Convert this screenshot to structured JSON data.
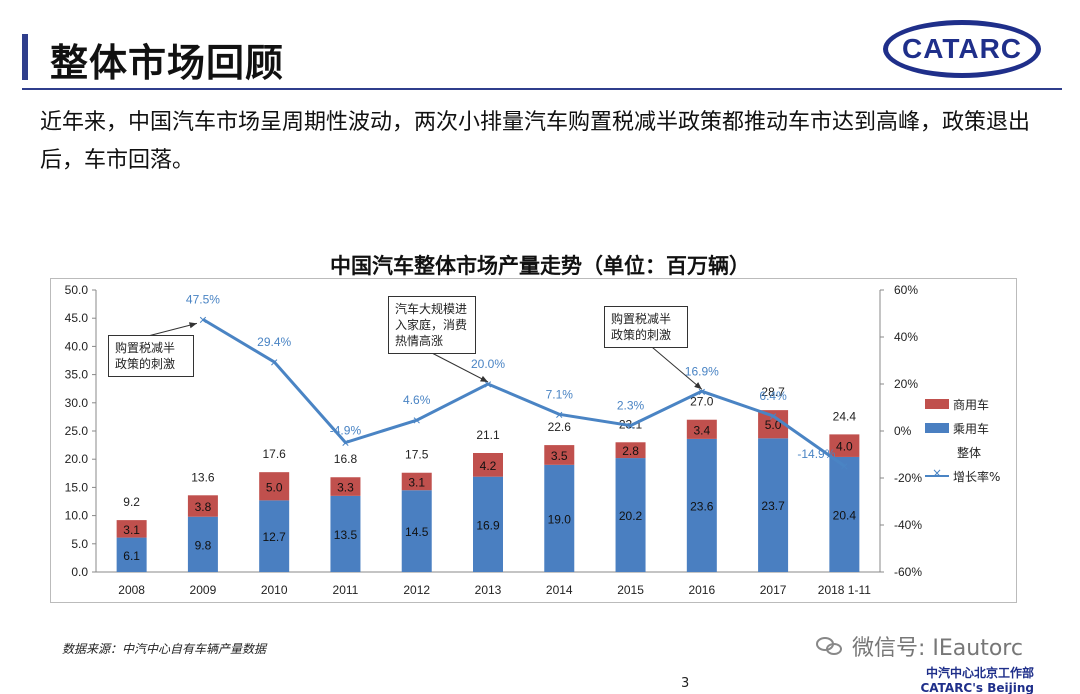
{
  "page": {
    "title": "整体市场回顾",
    "logo_text": "CATARC",
    "intro": "近年来，中国汽车市场呈周期性波动，两次小排量汽车购置税减半政策都推动车市达到高峰，政策退出后，车市回落。",
    "source": "数据来源：中汽中心自有车辆产量数据",
    "wechat": "微信号: IEautorc",
    "footer_cn": "中汽中心北京工作部",
    "footer_en": "CATARC's Beijing Operations",
    "page_number": "3"
  },
  "colors": {
    "passenger": "#4a7fc1",
    "commercial": "#c0504d",
    "growth_line": "#4a84c4",
    "brand": "#1f2f8a"
  },
  "chart_data": {
    "type": "bar",
    "title": "中国汽车整体市场产量走势（单位：百万辆）",
    "categories": [
      "2008",
      "2009",
      "2010",
      "2011",
      "2012",
      "2013",
      "2014",
      "2015",
      "2016",
      "2017",
      "2018 1-11"
    ],
    "series": [
      {
        "name": "乘用车",
        "values": [
          6.1,
          9.8,
          12.7,
          13.5,
          14.5,
          16.9,
          19.0,
          20.2,
          23.6,
          23.7,
          20.4
        ]
      },
      {
        "name": "商用车",
        "values": [
          3.1,
          3.8,
          5.0,
          3.3,
          3.1,
          4.2,
          3.5,
          2.8,
          3.4,
          5.0,
          4.0
        ]
      },
      {
        "name": "整体",
        "values": [
          9.2,
          13.6,
          17.6,
          16.8,
          17.5,
          21.1,
          22.6,
          23.1,
          27.0,
          28.7,
          24.4
        ]
      },
      {
        "name": "增长率%",
        "values": [
          null,
          47.5,
          29.4,
          -4.9,
          4.6,
          20.0,
          7.1,
          2.3,
          16.9,
          6.4,
          -14.9
        ]
      }
    ],
    "growth_labels": [
      "",
      "47.5%",
      "29.4%",
      "-4.9%",
      "4.6%",
      "20.0%",
      "7.1%",
      "2.3%",
      "16.9%",
      "6.4%",
      "-14.9%"
    ],
    "ylim": [
      0,
      50
    ],
    "yticks": [
      "0.0",
      "5.0",
      "10.0",
      "15.0",
      "20.0",
      "25.0",
      "30.0",
      "35.0",
      "40.0",
      "45.0",
      "50.0"
    ],
    "y2lim": [
      -60,
      60
    ],
    "y2ticks": [
      "-60%",
      "-40%",
      "-20%",
      "0%",
      "20%",
      "40%",
      "60%"
    ],
    "legend_position": "right",
    "annotations": [
      {
        "text": "购置税减半政策的刺激",
        "points_to": "2009"
      },
      {
        "text": "汽车大规模进入家庭，消费热情高涨",
        "points_to": "2013"
      },
      {
        "text": "购置税减半政策的刺激",
        "points_to": "2016"
      }
    ]
  },
  "callouts": [
    "购置税减半\n政策的刺激",
    "汽车大规模进\n入家庭，消费\n热情高涨",
    "购置税减半\n政策的刺激"
  ]
}
